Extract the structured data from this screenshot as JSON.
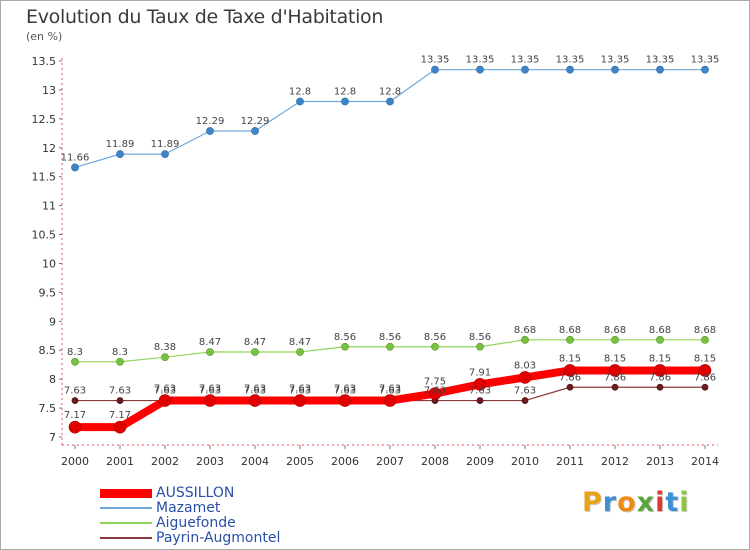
{
  "title": "Evolution du Taux de Taxe d'Habitation",
  "subtitle": "(en %)",
  "logo": {
    "letters": [
      "P",
      "r",
      "o",
      "x",
      "i",
      "t",
      "i"
    ],
    "colors": [
      "#e8a21a",
      "#3d8fd6",
      "#f08a17",
      "#57a53b",
      "#e03a2d",
      "#3d8fd6",
      "#8cc63f"
    ]
  },
  "chart_data": {
    "type": "line",
    "title": "Evolution du Taux de Taxe d'Habitation",
    "ylabel": "(en %)",
    "x": [
      "2000",
      "2001",
      "2002",
      "2003",
      "2004",
      "2005",
      "2006",
      "2007",
      "2008",
      "2009",
      "2010",
      "2011",
      "2012",
      "2013",
      "2014"
    ],
    "ylim": [
      7,
      13.5
    ],
    "yticks": [
      "7",
      "7.5",
      "8",
      "8.5",
      "9",
      "9.5",
      "10",
      "10.5",
      "11",
      "11.5",
      "12",
      "12.5",
      "13",
      "13.5"
    ],
    "series": [
      {
        "name": "AUSSILLON",
        "color": "#ff0000",
        "values": [
          7.17,
          7.17,
          7.63,
          7.63,
          7.63,
          7.63,
          7.63,
          7.63,
          7.75,
          7.91,
          8.03,
          8.15,
          8.15,
          8.15,
          8.15
        ]
      },
      {
        "name": "Mazamet",
        "color": "#6fa8dc",
        "values": [
          11.66,
          11.89,
          11.89,
          12.29,
          12.29,
          12.8,
          12.8,
          12.8,
          13.35,
          13.35,
          13.35,
          13.35,
          13.35,
          13.35,
          13.35
        ]
      },
      {
        "name": "Aiguefonde",
        "color": "#8fd45a",
        "values": [
          8.3,
          8.3,
          8.38,
          8.47,
          8.47,
          8.47,
          8.56,
          8.56,
          8.56,
          8.56,
          8.68,
          8.68,
          8.68,
          8.68,
          8.68
        ]
      },
      {
        "name": "Payrin-Augmontel",
        "color": "#8b3a3a",
        "values": [
          7.63,
          7.63,
          7.63,
          7.63,
          7.63,
          7.63,
          7.63,
          7.63,
          7.63,
          7.63,
          7.63,
          7.86,
          7.86,
          7.86,
          7.86
        ]
      }
    ],
    "data_labels": {
      "AUSSILLON": [
        "7.17",
        "7.17",
        "7.63",
        "7.63",
        "7.63",
        "7.63",
        "7.63",
        "7.63",
        "7.75",
        "7.91",
        "8.03",
        "8.15",
        "8.15",
        "8.15",
        "8.15"
      ],
      "Mazamet": [
        "11.66",
        "11.89",
        "11.89",
        "12.29",
        "12.29",
        "12.8",
        "12.8",
        "12.8",
        "13.35",
        "13.35",
        "13.35",
        "13.35",
        "13.35",
        "13.35",
        "13.35"
      ],
      "Aiguefonde": [
        "8.3",
        "8.3",
        "8.38",
        "8.47",
        "8.47",
        "8.47",
        "8.56",
        "8.56",
        "8.56",
        "8.56",
        "8.68",
        "8.68",
        "8.68",
        "8.68",
        "8.68"
      ],
      "Payrin-Augmontel": [
        "7.63",
        "7.63",
        "7.63",
        "7.63",
        "7.63",
        "7.63",
        "7.63",
        "7.63",
        "7.63",
        "7.63",
        "7.63",
        "7.86",
        "7.86",
        "7.86",
        "7.86"
      ]
    },
    "grid": false,
    "legend_position": "bottom-left"
  }
}
